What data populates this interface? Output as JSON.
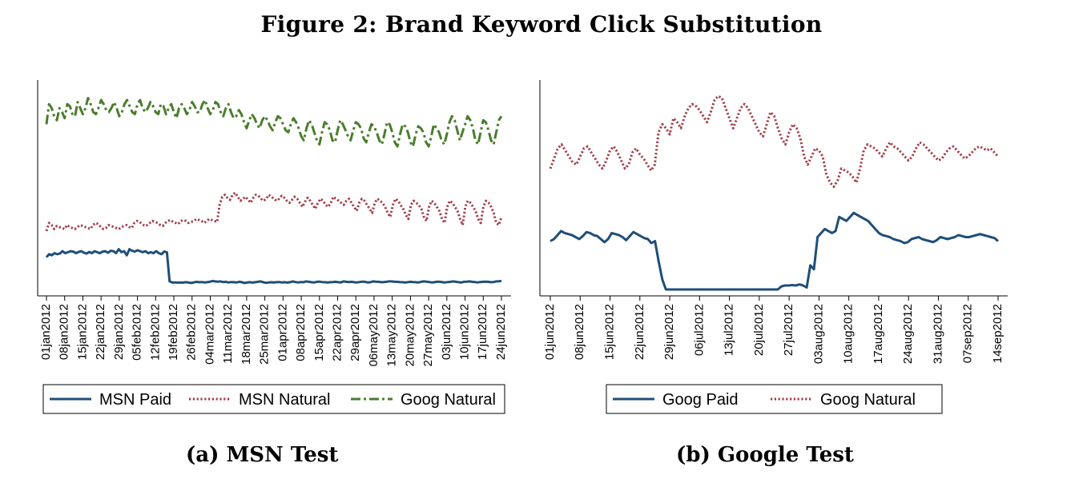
{
  "figure": {
    "title": "Figure 2: Brand Keyword Click Substitution",
    "caption_a": "(a) MSN Test",
    "caption_b": "(b) Google Test"
  },
  "chart_data": [
    {
      "type": "line",
      "title": "",
      "xlabel": "",
      "ylabel": "",
      "grid": false,
      "legend_position": "bottom",
      "y_axis_labels": "none",
      "x_tick_labels": [
        "01jan2012",
        "08jan2012",
        "15jan2012",
        "22jan2012",
        "29jan2012",
        "05feb2012",
        "12feb2012",
        "19feb2012",
        "26feb2012",
        "04mar2012",
        "11mar2012",
        "18mar2012",
        "25mar2012",
        "01apr2012",
        "08apr2012",
        "15apr2012",
        "22apr2012",
        "29apr2012",
        "06may2012",
        "13may2012",
        "20may2012",
        "27may2012",
        "03jun2012",
        "10jun2012",
        "17jun2012",
        "24jun2012"
      ],
      "x_range": [
        "01jan2012",
        "24jun2012"
      ],
      "series": [
        {
          "name": "MSN Paid",
          "color": "#1f4e79",
          "style": "solid",
          "values": [
            0.16,
            0.175,
            0.17,
            0.18,
            0.175,
            0.178,
            0.19,
            0.18,
            0.185,
            0.19,
            0.188,
            0.18,
            0.186,
            0.19,
            0.182,
            0.178,
            0.186,
            0.18,
            0.19,
            0.185,
            0.18,
            0.188,
            0.19,
            0.182,
            0.192,
            0.19,
            0.18,
            0.2,
            0.185,
            0.19,
            0.17,
            0.2,
            0.192,
            0.188,
            0.195,
            0.19,
            0.185,
            0.19,
            0.18,
            0.185,
            0.18,
            0.19,
            0.18,
            0.175,
            0.188,
            0.185,
            0.04,
            0.035,
            0.035,
            0.034,
            0.035,
            0.034,
            0.036,
            0.035,
            0.032,
            0.035,
            0.038,
            0.036,
            0.037,
            0.035,
            0.036,
            0.038,
            0.042,
            0.04,
            0.039,
            0.04,
            0.037,
            0.038,
            0.035,
            0.037,
            0.036,
            0.035,
            0.038,
            0.036,
            0.032,
            0.035,
            0.036,
            0.034,
            0.036,
            0.038,
            0.04,
            0.036,
            0.033,
            0.035,
            0.036,
            0.035,
            0.036,
            0.037,
            0.035,
            0.036,
            0.034,
            0.036,
            0.04,
            0.037,
            0.035,
            0.037,
            0.036,
            0.04,
            0.038,
            0.036,
            0.035,
            0.038,
            0.039,
            0.037,
            0.036,
            0.035,
            0.036,
            0.037,
            0.038,
            0.036,
            0.035,
            0.04,
            0.038,
            0.037,
            0.038,
            0.036,
            0.035,
            0.037,
            0.039,
            0.038,
            0.035,
            0.036,
            0.04,
            0.039,
            0.038,
            0.036,
            0.037,
            0.038,
            0.04,
            0.04,
            0.038,
            0.038,
            0.037,
            0.036,
            0.035,
            0.036,
            0.038,
            0.037,
            0.036,
            0.035,
            0.038,
            0.04,
            0.039,
            0.037,
            0.035,
            0.036,
            0.039,
            0.038,
            0.036,
            0.035,
            0.037,
            0.038,
            0.04,
            0.038,
            0.036,
            0.035,
            0.038,
            0.039,
            0.04,
            0.038,
            0.037,
            0.035,
            0.037,
            0.038,
            0.039,
            0.038,
            0.036,
            0.037,
            0.04,
            0.041,
            0.042
          ]
        },
        {
          "name": "MSN Natural",
          "color": "#a33b45",
          "style": "dotted",
          "values": [
            0.29,
            0.33,
            0.32,
            0.3,
            0.315,
            0.31,
            0.305,
            0.3,
            0.32,
            0.31,
            0.305,
            0.3,
            0.31,
            0.32,
            0.315,
            0.31,
            0.305,
            0.3,
            0.32,
            0.33,
            0.325,
            0.31,
            0.3,
            0.305,
            0.32,
            0.315,
            0.31,
            0.305,
            0.3,
            0.31,
            0.315,
            0.32,
            0.31,
            0.305,
            0.33,
            0.34,
            0.335,
            0.325,
            0.315,
            0.32,
            0.33,
            0.34,
            0.335,
            0.33,
            0.32,
            0.315,
            0.33,
            0.34,
            0.345,
            0.335,
            0.33,
            0.325,
            0.34,
            0.345,
            0.34,
            0.33,
            0.335,
            0.34,
            0.35,
            0.345,
            0.34,
            0.33,
            0.34,
            0.35,
            0.345,
            0.34,
            0.335,
            0.42,
            0.46,
            0.47,
            0.455,
            0.445,
            0.47,
            0.48,
            0.46,
            0.44,
            0.45,
            0.46,
            0.445,
            0.43,
            0.455,
            0.47,
            0.465,
            0.45,
            0.44,
            0.45,
            0.47,
            0.46,
            0.45,
            0.44,
            0.45,
            0.465,
            0.455,
            0.44,
            0.43,
            0.445,
            0.46,
            0.45,
            0.43,
            0.41,
            0.435,
            0.455,
            0.44,
            0.42,
            0.4,
            0.43,
            0.45,
            0.44,
            0.42,
            0.41,
            0.43,
            0.46,
            0.45,
            0.44,
            0.43,
            0.42,
            0.44,
            0.45,
            0.43,
            0.41,
            0.39,
            0.43,
            0.45,
            0.44,
            0.42,
            0.4,
            0.38,
            0.43,
            0.45,
            0.44,
            0.43,
            0.41,
            0.38,
            0.36,
            0.42,
            0.45,
            0.44,
            0.42,
            0.4,
            0.37,
            0.35,
            0.42,
            0.44,
            0.43,
            0.42,
            0.4,
            0.36,
            0.34,
            0.41,
            0.44,
            0.43,
            0.41,
            0.39,
            0.35,
            0.33,
            0.41,
            0.44,
            0.43,
            0.41,
            0.39,
            0.35,
            0.32,
            0.41,
            0.44,
            0.43,
            0.41,
            0.39,
            0.35,
            0.33,
            0.41,
            0.44,
            0.43,
            0.41,
            0.38,
            0.33,
            0.32,
            0.36
          ]
        },
        {
          "name": "Goog Natural",
          "color": "#4a7d2c",
          "style": "dash-dot",
          "values": [
            0.82,
            0.92,
            0.9,
            0.86,
            0.84,
            0.9,
            0.88,
            0.85,
            0.92,
            0.91,
            0.87,
            0.86,
            0.93,
            0.9,
            0.87,
            0.9,
            0.95,
            0.92,
            0.88,
            0.87,
            0.9,
            0.94,
            0.92,
            0.89,
            0.88,
            0.9,
            0.93,
            0.9,
            0.86,
            0.88,
            0.92,
            0.94,
            0.91,
            0.88,
            0.87,
            0.92,
            0.94,
            0.9,
            0.88,
            0.9,
            0.93,
            0.91,
            0.88,
            0.87,
            0.92,
            0.91,
            0.87,
            0.9,
            0.92,
            0.88,
            0.85,
            0.9,
            0.92,
            0.9,
            0.87,
            0.89,
            0.93,
            0.91,
            0.88,
            0.88,
            0.92,
            0.94,
            0.9,
            0.87,
            0.89,
            0.93,
            0.92,
            0.88,
            0.86,
            0.9,
            0.92,
            0.88,
            0.85,
            0.86,
            0.89,
            0.87,
            0.83,
            0.8,
            0.84,
            0.87,
            0.85,
            0.82,
            0.8,
            0.84,
            0.86,
            0.84,
            0.81,
            0.79,
            0.83,
            0.86,
            0.85,
            0.82,
            0.79,
            0.78,
            0.82,
            0.85,
            0.83,
            0.8,
            0.76,
            0.74,
            0.8,
            0.84,
            0.82,
            0.78,
            0.74,
            0.72,
            0.78,
            0.83,
            0.82,
            0.79,
            0.74,
            0.73,
            0.79,
            0.84,
            0.82,
            0.79,
            0.76,
            0.74,
            0.79,
            0.83,
            0.82,
            0.8,
            0.75,
            0.73,
            0.78,
            0.82,
            0.81,
            0.78,
            0.74,
            0.72,
            0.77,
            0.83,
            0.82,
            0.78,
            0.73,
            0.71,
            0.77,
            0.82,
            0.81,
            0.78,
            0.73,
            0.71,
            0.77,
            0.81,
            0.8,
            0.78,
            0.73,
            0.71,
            0.76,
            0.82,
            0.8,
            0.78,
            0.74,
            0.72,
            0.77,
            0.83,
            0.86,
            0.84,
            0.79,
            0.74,
            0.78,
            0.82,
            0.86,
            0.84,
            0.8,
            0.74,
            0.72,
            0.78,
            0.84,
            0.83,
            0.79,
            0.74,
            0.72,
            0.78,
            0.84,
            0.86
          ]
        }
      ]
    },
    {
      "type": "line",
      "title": "",
      "xlabel": "",
      "ylabel": "",
      "grid": false,
      "legend_position": "bottom",
      "y_axis_labels": "none",
      "x_tick_labels": [
        "01jun2012",
        "08jun2012",
        "15jun2012",
        "22jun2012",
        "29jun2012",
        "06jul2012",
        "13jul2012",
        "20jul2012",
        "27jul2012",
        "03aug2012",
        "10aug2012",
        "17aug2012",
        "24aug2012",
        "31aug2012",
        "07sep2012",
        "14sep2012"
      ],
      "x_range": [
        "01jun2012",
        "14sep2012"
      ],
      "series": [
        {
          "name": "Goog Paid",
          "color": "#1f4e79",
          "style": "solid",
          "values": [
            0.24,
            0.25,
            0.27,
            0.29,
            0.28,
            0.275,
            0.27,
            0.26,
            0.25,
            0.265,
            0.285,
            0.28,
            0.27,
            0.265,
            0.25,
            0.235,
            0.25,
            0.28,
            0.275,
            0.27,
            0.26,
            0.245,
            0.265,
            0.285,
            0.275,
            0.265,
            0.255,
            0.25,
            0.23,
            0.24,
            0.14,
            0.05,
            0.0,
            0.0,
            0.0,
            0.0,
            0.0,
            0.0,
            0.0,
            0.0,
            0.0,
            0.0,
            0.0,
            0.0,
            0.0,
            0.0,
            0.0,
            0.0,
            0.0,
            0.0,
            0.0,
            0.0,
            0.0,
            0.0,
            0.0,
            0.0,
            0.0,
            0.0,
            0.0,
            0.0,
            0.0,
            0.0,
            0.0,
            0.0,
            0.015,
            0.02,
            0.02,
            0.022,
            0.02,
            0.025,
            0.02,
            0.01,
            0.12,
            0.1,
            0.26,
            0.28,
            0.3,
            0.29,
            0.28,
            0.29,
            0.36,
            0.35,
            0.34,
            0.36,
            0.38,
            0.37,
            0.36,
            0.35,
            0.34,
            0.32,
            0.3,
            0.28,
            0.27,
            0.265,
            0.26,
            0.25,
            0.245,
            0.24,
            0.23,
            0.235,
            0.25,
            0.255,
            0.26,
            0.25,
            0.245,
            0.24,
            0.235,
            0.245,
            0.26,
            0.255,
            0.25,
            0.255,
            0.26,
            0.27,
            0.265,
            0.26,
            0.26,
            0.265,
            0.27,
            0.275,
            0.27,
            0.265,
            0.26,
            0.255,
            0.24
          ]
        },
        {
          "name": "Goog Natural",
          "color": "#a33b45",
          "style": "dotted",
          "values": [
            0.6,
            0.65,
            0.7,
            0.72,
            0.69,
            0.66,
            0.63,
            0.62,
            0.66,
            0.7,
            0.71,
            0.68,
            0.65,
            0.62,
            0.6,
            0.64,
            0.69,
            0.71,
            0.68,
            0.64,
            0.6,
            0.62,
            0.68,
            0.7,
            0.67,
            0.65,
            0.62,
            0.59,
            0.62,
            0.78,
            0.82,
            0.8,
            0.77,
            0.85,
            0.83,
            0.8,
            0.86,
            0.9,
            0.92,
            0.91,
            0.89,
            0.86,
            0.83,
            0.88,
            0.94,
            0.96,
            0.95,
            0.9,
            0.85,
            0.8,
            0.85,
            0.9,
            0.92,
            0.9,
            0.86,
            0.82,
            0.78,
            0.76,
            0.82,
            0.88,
            0.86,
            0.8,
            0.75,
            0.72,
            0.78,
            0.82,
            0.8,
            0.75,
            0.66,
            0.62,
            0.66,
            0.7,
            0.69,
            0.66,
            0.57,
            0.53,
            0.51,
            0.54,
            0.6,
            0.59,
            0.58,
            0.56,
            0.53,
            0.6,
            0.69,
            0.72,
            0.71,
            0.7,
            0.68,
            0.66,
            0.7,
            0.73,
            0.71,
            0.7,
            0.68,
            0.66,
            0.64,
            0.66,
            0.7,
            0.73,
            0.72,
            0.7,
            0.68,
            0.66,
            0.64,
            0.65,
            0.68,
            0.7,
            0.71,
            0.69,
            0.67,
            0.65,
            0.66,
            0.68,
            0.7,
            0.71,
            0.7,
            0.69,
            0.7,
            0.68,
            0.66
          ]
        }
      ]
    }
  ]
}
